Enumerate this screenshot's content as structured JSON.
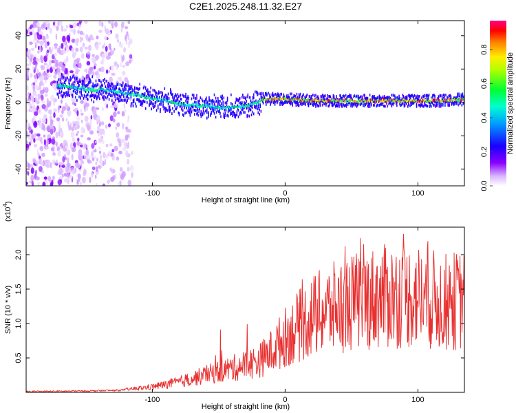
{
  "page": {
    "title": "C2E1.2025.248.11.32.E27"
  },
  "chart_data": [
    {
      "type": "heatmap",
      "title": "C2E1.2025.248.11.32.E27",
      "xlabel": "Height of straight line (km)",
      "ylabel": "Frequency (Hz)",
      "xlim": [
        -195,
        135
      ],
      "ylim": [
        -50,
        49
      ],
      "xticks": [
        -100,
        0,
        100
      ],
      "yticks": [
        -40,
        -20,
        0,
        20,
        40
      ],
      "xtick_labels": [
        "-100",
        "0",
        "100"
      ],
      "ytick_labels": [
        "-40",
        "-20",
        "0",
        "20",
        "40"
      ],
      "colorbar": {
        "label": "Normalized spectral amplitude",
        "range": [
          0,
          0.97
        ],
        "ticks": [
          0.0,
          0.2,
          0.4,
          0.6,
          0.8
        ],
        "tick_labels": [
          "0.0",
          "0.2",
          "0.4",
          "0.6",
          "0.8"
        ],
        "colors": [
          "#ffffff",
          "#9b00ff",
          "#1a00ff",
          "#00c8ff",
          "#00ff66",
          "#aaff00",
          "#ffff00",
          "#ff8800",
          "#ff0000",
          "#ff0080"
        ]
      },
      "ridge_frequency_hz": {
        "x": [
          -170,
          -150,
          -130,
          -110,
          -100,
          -90,
          -80,
          -70,
          -60,
          -50,
          -40,
          -30,
          -20,
          -18,
          0,
          20,
          40,
          60,
          80,
          100,
          120,
          135
        ],
        "y": [
          10,
          8,
          7,
          4,
          2,
          1,
          -1,
          -2,
          -2,
          -3,
          -3,
          -2,
          0,
          2,
          2,
          1,
          1,
          1,
          1,
          1,
          1,
          2
        ]
      }
    },
    {
      "type": "line",
      "xlabel": "Height of straight line (km)",
      "ylabel": "SNR (10 * v/v)",
      "multiplier": "(x10",
      "multiplier_exp": "4",
      "multiplier_close": ")",
      "xlim": [
        -195,
        135
      ],
      "ylim": [
        0,
        2.4
      ],
      "xticks": [
        -100,
        0,
        100
      ],
      "yticks": [
        0.5,
        1.0,
        1.5,
        2.0
      ],
      "xtick_labels": [
        "-100",
        "0",
        "100"
      ],
      "ytick_labels": [
        "0.5",
        "1.0",
        "1.5",
        "2.0"
      ],
      "series": [
        {
          "name": "SNR",
          "color": "#e83030",
          "trend_x": [
            -195,
            -150,
            -125,
            -100,
            -80,
            -60,
            -40,
            -20,
            -10,
            0,
            20,
            40,
            60,
            80,
            100,
            120,
            135
          ],
          "trend_y": [
            0.01,
            0.02,
            0.03,
            0.08,
            0.15,
            0.25,
            0.35,
            0.45,
            0.6,
            0.8,
            1.1,
            1.25,
            1.35,
            1.4,
            1.4,
            1.3,
            1.35
          ]
        }
      ]
    }
  ]
}
